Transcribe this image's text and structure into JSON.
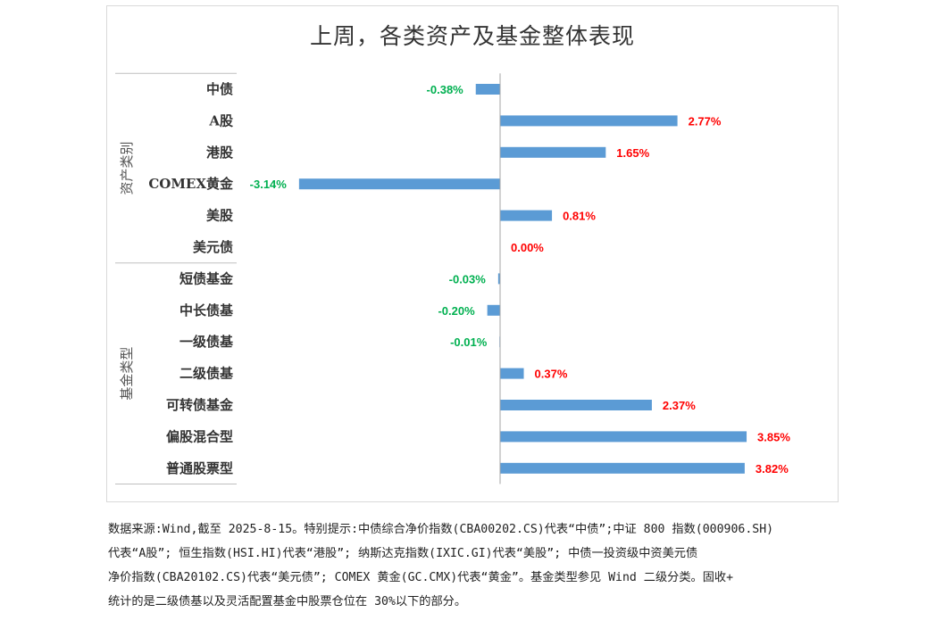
{
  "chart_data": {
    "type": "bar",
    "orientation": "horizontal",
    "title": "上周，各类资产及基金整体表现",
    "groups": [
      {
        "name": "资产类别",
        "categories": [
          "中债",
          "A股",
          "港股",
          "COMEX黄金",
          "美股",
          "美元债"
        ],
        "values": [
          -0.38,
          2.77,
          1.65,
          -3.14,
          0.81,
          0.0
        ],
        "labels": [
          "-0.38%",
          "2.77%",
          "1.65%",
          "-3.14%",
          "0.81%",
          "0.00%"
        ]
      },
      {
        "name": "基金类型",
        "categories": [
          "短债基金",
          "中长债基",
          "一级债基",
          "二级债基",
          "可转债基金",
          "偏股混合型",
          "普通股票型"
        ],
        "values": [
          -0.03,
          -0.2,
          -0.01,
          0.37,
          2.37,
          3.85,
          3.82
        ],
        "labels": [
          "-0.03%",
          "-0.20%",
          "-0.01%",
          "0.37%",
          "2.37%",
          "3.85%",
          "3.82%"
        ]
      }
    ],
    "colors": {
      "bar": "#5b9bd5",
      "positive_label": "#ff0000",
      "negative_label": "#00b050"
    },
    "grid": false,
    "legend": "none"
  },
  "footnote": {
    "lines": [
      "数据来源:Wind,截至 2025-8-15。特别提示:中债综合净价指数(CBA00202.CS)代表“中债”;中证 800 指数(000906.SH)",
      "代表“A股”; 恒生指数(HSI.HI)代表“港股”; 纳斯达克指数(IXIC.GI)代表“美股”; 中债一投资级中资美元债",
      "净价指数(CBA20102.CS)代表“美元债”; COMEX 黄金(GC.CMX)代表“黄金”。基金类型参见 Wind 二级分类。固收+",
      "统计的是二级债基以及灵活配置基金中股票仓位在 30%以下的部分。"
    ]
  }
}
